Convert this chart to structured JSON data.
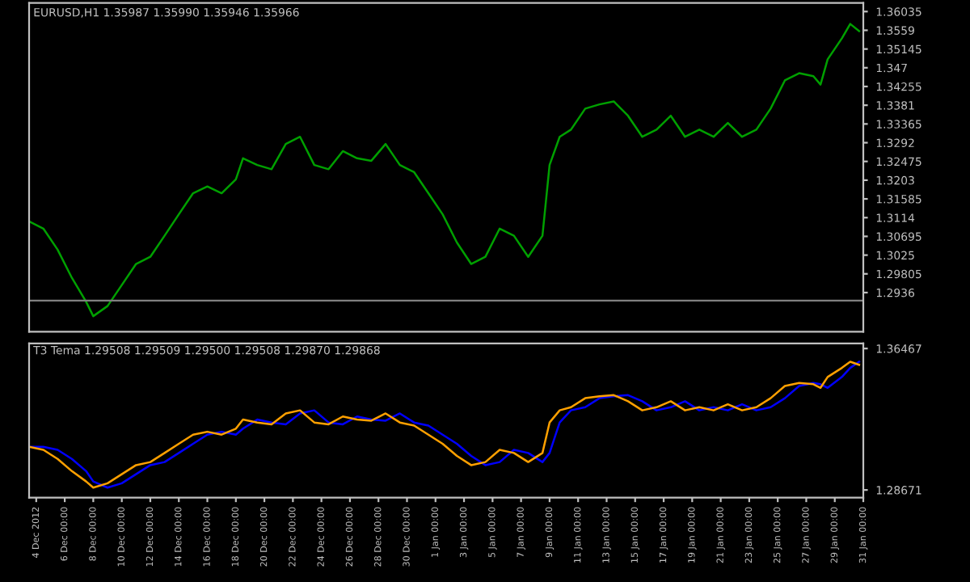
{
  "chart_data": [
    {
      "type": "line",
      "title": "EURUSD,H1 1.35987 1.35990 1.35946 1.35966",
      "x": [
        "2012-12-03T12:00",
        "2012-12-04T12:00",
        "2012-12-05T12:00",
        "2012-12-06T12:00",
        "2012-12-07T12:00",
        "2012-12-08T00:00",
        "2012-12-09T00:00",
        "2012-12-10T00:00",
        "2012-12-11T00:00",
        "2012-12-12T00:00",
        "2012-12-13T00:00",
        "2012-12-14T00:00",
        "2012-12-15T00:00",
        "2012-12-16T00:00",
        "2012-12-17T00:00",
        "2012-12-18T00:00",
        "2012-12-18T12:00",
        "2012-12-19T12:00",
        "2012-12-20T12:00",
        "2012-12-21T12:00",
        "2012-12-22T12:00",
        "2012-12-23T12:00",
        "2012-12-24T12:00",
        "2012-12-25T12:00",
        "2012-12-26T12:00",
        "2012-12-27T12:00",
        "2012-12-28T12:00",
        "2012-12-29T12:00",
        "2012-12-30T12:00",
        "2012-12-31T12:00",
        "2013-01-01T12:00",
        "2013-01-02T12:00",
        "2013-01-03T12:00",
        "2013-01-04T12:00",
        "2013-01-05T12:00",
        "2013-01-06T12:00",
        "2013-01-07T12:00",
        "2013-01-08T12:00",
        "2013-01-09T00:00",
        "2013-01-09T17:00",
        "2013-01-10T12:00",
        "2013-01-11T12:00",
        "2013-01-12T12:00",
        "2013-01-13T12:00",
        "2013-01-14T12:00",
        "2013-01-15T12:00",
        "2013-01-16T12:00",
        "2013-01-17T12:00",
        "2013-01-18T12:00",
        "2013-01-19T12:00",
        "2013-01-20T12:00",
        "2013-01-21T12:00",
        "2013-01-22T12:00",
        "2013-01-23T12:00",
        "2013-01-24T12:00",
        "2013-01-25T12:00",
        "2013-01-26T12:00",
        "2013-01-27T12:00",
        "2013-01-28T00:00",
        "2013-01-28T12:00",
        "2013-01-29T12:00",
        "2013-01-30T02:00",
        "2013-01-30T17:00"
      ],
      "series": [
        {
          "color": "#00a000",
          "values": [
            1.3105,
            1.3088,
            1.3038,
            1.2971,
            1.2914,
            1.288,
            1.2904,
            1.2954,
            1.3004,
            1.3021,
            1.3071,
            1.3122,
            1.3172,
            1.3188,
            1.3172,
            1.3205,
            1.3255,
            1.3239,
            1.3229,
            1.3289,
            1.3306,
            1.3239,
            1.3229,
            1.3272,
            1.3255,
            1.3249,
            1.3289,
            1.3239,
            1.3222,
            1.3172,
            1.3122,
            1.3055,
            1.3004,
            1.3021,
            1.3088,
            1.3071,
            1.3021,
            1.3071,
            1.3239,
            1.3306,
            1.3323,
            1.3373,
            1.3383,
            1.339,
            1.3356,
            1.3306,
            1.3323,
            1.3356,
            1.3306,
            1.3323,
            1.3306,
            1.3339,
            1.3306,
            1.3323,
            1.3373,
            1.344,
            1.3457,
            1.345,
            1.343,
            1.349,
            1.354,
            1.3574,
            1.3557
          ]
        }
      ],
      "xlim": [
        "2012-12-03T12:00",
        "2013-01-31T00:00"
      ],
      "ylim": [
        1.2843,
        1.3624
      ],
      "yticks": [
        1.36035,
        1.3559,
        1.35145,
        1.347,
        1.34255,
        1.3381,
        1.33365,
        1.3292,
        1.32475,
        1.3203,
        1.31585,
        1.3114,
        1.30695,
        1.3025,
        1.29805,
        1.2936
      ],
      "ref_lines": [
        {
          "axis": "y",
          "value": 1.2917,
          "color": "#808080"
        }
      ],
      "tick_labels": "y",
      "grid": false,
      "line_style": "solid",
      "marker": "none"
    },
    {
      "type": "line",
      "title": "T3 Tema 1.29508 1.29509 1.29500 1.29508 1.29870 1.29868",
      "x": [
        "2012-12-03T12:00",
        "2012-12-04T12:00",
        "2012-12-05T12:00",
        "2012-12-06T12:00",
        "2012-12-07T12:00",
        "2012-12-08T00:00",
        "2012-12-09T00:00",
        "2012-12-10T00:00",
        "2012-12-11T00:00",
        "2012-12-12T00:00",
        "2012-12-13T00:00",
        "2012-12-14T00:00",
        "2012-12-15T00:00",
        "2012-12-16T00:00",
        "2012-12-17T00:00",
        "2012-12-18T00:00",
        "2012-12-18T12:00",
        "2012-12-19T12:00",
        "2012-12-20T12:00",
        "2012-12-21T12:00",
        "2012-12-22T12:00",
        "2012-12-23T12:00",
        "2012-12-24T12:00",
        "2012-12-25T12:00",
        "2012-12-26T12:00",
        "2012-12-27T12:00",
        "2012-12-28T12:00",
        "2012-12-29T12:00",
        "2012-12-30T12:00",
        "2012-12-31T12:00",
        "2013-01-01T12:00",
        "2013-01-02T12:00",
        "2013-01-03T12:00",
        "2013-01-04T12:00",
        "2013-01-05T12:00",
        "2013-01-06T12:00",
        "2013-01-07T12:00",
        "2013-01-08T12:00",
        "2013-01-09T00:00",
        "2013-01-09T17:00",
        "2013-01-10T12:00",
        "2013-01-11T12:00",
        "2013-01-12T12:00",
        "2013-01-13T12:00",
        "2013-01-14T12:00",
        "2013-01-15T12:00",
        "2013-01-16T12:00",
        "2013-01-17T12:00",
        "2013-01-18T12:00",
        "2013-01-19T12:00",
        "2013-01-20T12:00",
        "2013-01-21T12:00",
        "2013-01-22T12:00",
        "2013-01-23T12:00",
        "2013-01-24T12:00",
        "2013-01-25T12:00",
        "2013-01-26T12:00",
        "2013-01-27T12:00",
        "2013-01-28T00:00",
        "2013-01-28T12:00",
        "2013-01-29T12:00",
        "2013-01-30T02:00",
        "2013-01-30T17:00"
      ],
      "series": [
        {
          "color": "#0000ff",
          "values": [
            1.3105,
            1.3105,
            1.3088,
            1.3038,
            1.2971,
            1.2914,
            1.288,
            1.2904,
            1.2954,
            1.3004,
            1.3021,
            1.3071,
            1.3122,
            1.3172,
            1.3188,
            1.3172,
            1.3205,
            1.3255,
            1.3239,
            1.3229,
            1.3289,
            1.3306,
            1.3239,
            1.3229,
            1.3272,
            1.3255,
            1.3249,
            1.3289,
            1.3239,
            1.3222,
            1.3172,
            1.3122,
            1.3055,
            1.3004,
            1.3021,
            1.3088,
            1.3071,
            1.3021,
            1.3071,
            1.3239,
            1.3306,
            1.3323,
            1.3373,
            1.3383,
            1.339,
            1.3356,
            1.3306,
            1.3323,
            1.3356,
            1.3306,
            1.3323,
            1.3306,
            1.3339,
            1.3306,
            1.3323,
            1.3373,
            1.344,
            1.3457,
            1.345,
            1.343,
            1.349,
            1.354,
            1.3574
          ]
        },
        {
          "color": "#ffa000",
          "values": [
            1.3105,
            1.3088,
            1.3038,
            1.2971,
            1.2914,
            1.288,
            1.2904,
            1.2954,
            1.3004,
            1.3021,
            1.3071,
            1.3122,
            1.3172,
            1.3188,
            1.3172,
            1.3205,
            1.3255,
            1.3239,
            1.3229,
            1.3289,
            1.3306,
            1.3239,
            1.3229,
            1.3272,
            1.3255,
            1.3249,
            1.3289,
            1.3239,
            1.3222,
            1.3172,
            1.3122,
            1.3055,
            1.3004,
            1.3021,
            1.3088,
            1.3071,
            1.3021,
            1.3071,
            1.3239,
            1.3306,
            1.3323,
            1.3373,
            1.3383,
            1.339,
            1.3356,
            1.3306,
            1.3323,
            1.3356,
            1.3306,
            1.3323,
            1.3306,
            1.3339,
            1.3306,
            1.3323,
            1.3373,
            1.344,
            1.3457,
            1.345,
            1.343,
            1.349,
            1.354,
            1.3574,
            1.3557
          ]
        }
      ],
      "xlim": [
        "2012-12-03T12:00",
        "2013-01-31T00:00"
      ],
      "xticks": [
        {
          "value": "2012-12-04",
          "label": "4 Dec 2012"
        },
        {
          "value": "2012-12-06",
          "label": "6 Dec 00:00"
        },
        {
          "value": "2012-12-08",
          "label": "8 Dec 00:00"
        },
        {
          "value": "2012-12-10",
          "label": "10 Dec 00:00"
        },
        {
          "value": "2012-12-12",
          "label": "12 Dec 00:00"
        },
        {
          "value": "2012-12-14",
          "label": "14 Dec 00:00"
        },
        {
          "value": "2012-12-16",
          "label": "16 Dec 00:00"
        },
        {
          "value": "2012-12-18",
          "label": "18 Dec 00:00"
        },
        {
          "value": "2012-12-20",
          "label": "20 Dec 00:00"
        },
        {
          "value": "2012-12-22",
          "label": "22 Dec 00:00"
        },
        {
          "value": "2012-12-24",
          "label": "24 Dec 00:00"
        },
        {
          "value": "2012-12-26",
          "label": "26 Dec 00:00"
        },
        {
          "value": "2012-12-28",
          "label": "28 Dec 00:00"
        },
        {
          "value": "2012-12-30",
          "label": "30 Dec 00:00"
        },
        {
          "value": "2013-01-01",
          "label": "1 Jan 00:00"
        },
        {
          "value": "2013-01-03",
          "label": "3 Jan 00:00"
        },
        {
          "value": "2013-01-05",
          "label": "5 Jan 00:00"
        },
        {
          "value": "2013-01-07",
          "label": "7 Jan 00:00"
        },
        {
          "value": "2013-01-09",
          "label": "9 Jan 00:00"
        },
        {
          "value": "2013-01-11",
          "label": "11 Jan 00:00"
        },
        {
          "value": "2013-01-13",
          "label": "13 Jan 00:00"
        },
        {
          "value": "2013-01-15",
          "label": "15 Jan 00:00"
        },
        {
          "value": "2013-01-17",
          "label": "17 Jan 00:00"
        },
        {
          "value": "2013-01-19",
          "label": "19 Jan 00:00"
        },
        {
          "value": "2013-01-21",
          "label": "21 Jan 00:00"
        },
        {
          "value": "2013-01-23",
          "label": "23 Jan 00:00"
        },
        {
          "value": "2013-01-25",
          "label": "25 Jan 00:00"
        },
        {
          "value": "2013-01-27",
          "label": "27 Jan 00:00"
        },
        {
          "value": "2013-01-29",
          "label": "29 Jan 00:00"
        },
        {
          "value": "2013-01-31",
          "label": "31 Jan 00:00"
        }
      ],
      "ylim": [
        1.2825,
        1.3675
      ],
      "yticks": [
        1.36467,
        1.28671
      ],
      "grid": false,
      "line_style": "solid",
      "marker": "none"
    }
  ]
}
